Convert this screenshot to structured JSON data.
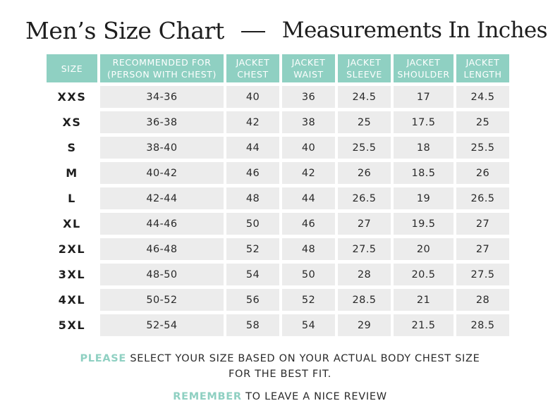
{
  "title": {
    "main": "Men’s Size Chart",
    "sub": "Measurements In Inches"
  },
  "colors": {
    "accent": "#8fd0c2",
    "cell_background": "#ececec",
    "text": "#222222"
  },
  "table": {
    "headers": [
      [
        "SIZE"
      ],
      [
        "RECOMMENDED FOR",
        "(PERSON WITH CHEST)"
      ],
      [
        "JACKET",
        "CHEST"
      ],
      [
        "JACKET",
        "WAIST"
      ],
      [
        "JACKET",
        "SLEEVE"
      ],
      [
        "JACKET",
        "SHOULDER"
      ],
      [
        "JACKET",
        "LENGTH"
      ]
    ],
    "rows": [
      [
        "XXS",
        "34-36",
        "40",
        "36",
        "24.5",
        "17",
        "24.5"
      ],
      [
        "XS",
        "36-38",
        "42",
        "38",
        "25",
        "17.5",
        "25"
      ],
      [
        "S",
        "38-40",
        "44",
        "40",
        "25.5",
        "18",
        "25.5"
      ],
      [
        "M",
        "40-42",
        "46",
        "42",
        "26",
        "18.5",
        "26"
      ],
      [
        "L",
        "42-44",
        "48",
        "44",
        "26.5",
        "19",
        "26.5"
      ],
      [
        "XL",
        "44-46",
        "50",
        "46",
        "27",
        "19.5",
        "27"
      ],
      [
        "2XL",
        "46-48",
        "52",
        "48",
        "27.5",
        "20",
        "27"
      ],
      [
        "3XL",
        "48-50",
        "54",
        "50",
        "28",
        "20.5",
        "27.5"
      ],
      [
        "4XL",
        "50-52",
        "56",
        "52",
        "28.5",
        "21",
        "28"
      ],
      [
        "5XL",
        "52-54",
        "58",
        "54",
        "29",
        "21.5",
        "28.5"
      ]
    ]
  },
  "notes": {
    "please_word": "PLEASE",
    "please_rest": " SELECT YOUR SIZE BASED ON YOUR ACTUAL BODY CHEST SIZE",
    "please_line2": "FOR THE BEST FIT.",
    "remember_word": "REMEMBER",
    "remember_rest": " TO LEAVE A NICE REVIEW"
  }
}
